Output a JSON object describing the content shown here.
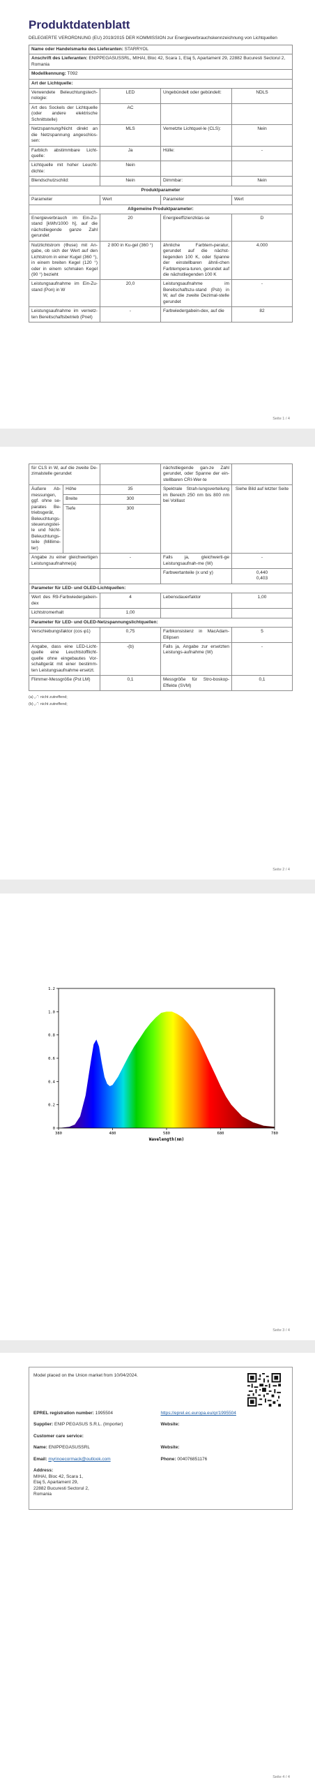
{
  "page1": {
    "title": "Produktdatenblatt",
    "regulation": "DELEGIERTE VERORDNUNG (EU) 2019/2015 DER KOMMISSION zur Energieverbrauchskennzeichnung von Lichtquellen",
    "supplier_name_label": "Name oder Handelsmarke des Lieferanten:",
    "supplier_name": "STARRYOL",
    "address_label": "Anschrift des Lieferanten:",
    "address": "ENIPPEGASUSSRL, MIHAI, Bloc 42, Scara 1, Etaj 5, Apartament 29, 22882 Bucuresti Sectorul 2, Romania",
    "model_label": "Modellkennung:",
    "model": "T092",
    "type_heading": "Art der Lichtquelle:",
    "type_rows": [
      {
        "p1": "Verwendete Beleuchtungstech-nologie:",
        "v1": "LED",
        "p2": "Ungebündelt oder gebündelt:",
        "v2": "NDLS"
      },
      {
        "p1": "Art des Sockels der Lichtquelle (oder andere elektrische Schnittstelle)",
        "v1": "AC",
        "p2": "",
        "v2": ""
      },
      {
        "p1": "Netzspannung/Nicht direkt an die Netzspannung angeschlos-sen:",
        "v1": "MLS",
        "p2": "Vernetzte Lichtquel-le (CLS):",
        "v2": "Nein"
      },
      {
        "p1": "Farblich abstimmbare Licht-quelle:",
        "v1": "Ja",
        "p2": "Hülle:",
        "v2": "-"
      },
      {
        "p1": "Lichtquelle mit hoher Leucht-dichte:",
        "v1": "Nein",
        "p2": "",
        "v2": ""
      },
      {
        "p1": "Blendschutzschild:",
        "v1": "Nein",
        "p2": "Dimmbar:",
        "v2": "Nein"
      }
    ],
    "product_params_heading": "Produktparameter",
    "col_param": "Parameter",
    "col_value": "Wert",
    "general_heading": "Allgemeine Produktparameter:",
    "param_rows": [
      {
        "p1": "Energieverbrauch im Ein-Zu-stand [kWh/1000 h], auf die nächstliegende ganze Zahl gerundet",
        "v1": "20",
        "p2": "Energieeffizienzklas-se",
        "v2": "D"
      },
      {
        "p1": "Nutzlichtstrom (Φuse) mit An-gabe, ob sich der Wert auf den Lichtstrom in einer Kugel (360 °), in einem breiten Kegel (120 °) oder in einem schmalen Kegel (90 °) bezieht",
        "v1": "2 800 in Ku-gel (360 °)",
        "p2": "ähnliche Farbtem-peratur, gerundet auf die nächst-liegenden 100 K, oder Spanne der einstellbaren ähnli-chen Farbtempera-turen, gerundet auf die nächstliegenden 100 K",
        "v2": "4.000"
      },
      {
        "p1": "Leistungsaufnahme im Ein-Zu-stand (Pon) in W",
        "v1": "20,0",
        "p2": "Leistungsaufnahme im Bereitschaftszu-stand (Psb) in W, auf die zweite Dezimal-stelle gerundet",
        "v2": "-"
      },
      {
        "p1": "Leistungsaufnahme im vernetz-ten Bereitschaftsbetrieb (Pnet)",
        "v1": "-",
        "p2": "Farbwiedergabein-dex, auf die",
        "v2": "82"
      }
    ],
    "footer": "Seite 1 / 4"
  },
  "page2": {
    "cont_rows": [
      {
        "p1": "für CLS in W, auf die zweite De-zimalstelle gerundet",
        "v1": "",
        "p2": "nächstliegende gan-ze Zahl gerundet, oder Spanne der ein-stellbaren CRI-Wer-te",
        "v2": ""
      }
    ],
    "dims_label": "Äußere Ab-messungen, ggf. ohne se-parates Be-triebsgerät, Beleuchtungs-steuerungstei-le und Nicht-Beleuchtungs-teile (Millime-ter)",
    "dims": [
      {
        "name": "Höhe",
        "value": "35"
      },
      {
        "name": "Breite",
        "value": "300"
      },
      {
        "name": "Tiefe",
        "value": "300"
      }
    ],
    "spectral_label": "Spektrale Strah-lungsverteilung im Bereich 250 nm bis 800 nm bei Volllast",
    "spectral_value": "Siehe Bild auf letzter Seite",
    "equiv_label": "Angabe zu einer gleichwertigen Leistungsaufnahme(a)",
    "equiv_value": "-",
    "equiv2_label": "Falls ja, gleichwerti-ge Leistungsaufnah-me (W)",
    "equiv2_value": "-",
    "chroma_label": "Farbwertanteile (x und y)",
    "chroma_x": "0,440",
    "chroma_y": "0,403",
    "led_heading": "Parameter für LED- und OLED-Lichtquellen:",
    "r9_label": "Wert des R9-Farbwiedergabein-dex",
    "r9_value": "4",
    "life_label": "Lebensdauerfaktor",
    "life_value": "1,00",
    "maint_label": "Lichtstromerhalt",
    "maint_value": "1,00",
    "mains_heading": "Parameter für LED- und OLED-Netzspannungslichtquellen:",
    "pf_label": "Verschiebungsfaktor (cos φ1)",
    "pf_value": "0,75",
    "macadam_label": "Farbkonsistenz in MacAdam-Ellipsen",
    "macadam_value": "5",
    "replace_label": "Angabe, dass eine LED-Licht-quelle eine Leuchtstofflicht-quelle ohne eingebautes Vor-schaltgerät mit einer bestimm-ten Leistungsaufnahme ersetzt.",
    "replace_value": "-(b)",
    "replace2_label": "Falls ja, Angabe zur ersetzten Leistungs-aufnahme (W)",
    "replace2_value": "-",
    "flicker_label": "Flimmer-Messgröße (Pst LM)",
    "flicker_value": "0,1",
    "svm_label": "Messgröße für Stro-boskop-Effekte (SVM)",
    "svm_value": "0,1",
    "note_a": "(a) „-“: nicht zutreffend;",
    "note_b": "(b) „-“: nicht zutreffend;",
    "footer": "Seite 2 / 4"
  },
  "page3": {
    "footer": "Seite 3 / 4"
  },
  "chart_data": {
    "type": "area",
    "xlabel": "Wavelength(nm)",
    "ylabel": "",
    "title": "",
    "xlim": [
      380,
      780
    ],
    "ylim": [
      0,
      1.2
    ],
    "x_ticks": [
      380,
      480,
      580,
      680,
      780
    ],
    "y_ticks": [
      0,
      0.2,
      0.4,
      0.6,
      0.8,
      1.0,
      1.2
    ],
    "x_tick_labels": [
      "380",
      "480",
      "580",
      "680",
      "780"
    ],
    "y_tick_labels": [
      "0",
      "0.2",
      "0.4",
      "0.6",
      "0.8",
      "1.0",
      "1.2"
    ],
    "series": [
      {
        "x": [
          380,
          400,
          410,
          420,
          430,
          440,
          445,
          450,
          455,
          460,
          465,
          470,
          475,
          480,
          490,
          500,
          510,
          520,
          530,
          540,
          550,
          560,
          570,
          580,
          590,
          600,
          610,
          620,
          630,
          640,
          650,
          660,
          670,
          680,
          690,
          700,
          720,
          740,
          760,
          780
        ],
        "y": [
          0.0,
          0.01,
          0.03,
          0.1,
          0.28,
          0.58,
          0.72,
          0.76,
          0.7,
          0.56,
          0.44,
          0.38,
          0.36,
          0.37,
          0.44,
          0.53,
          0.62,
          0.7,
          0.77,
          0.84,
          0.9,
          0.95,
          0.99,
          1.0,
          1.0,
          0.98,
          0.95,
          0.9,
          0.84,
          0.76,
          0.66,
          0.56,
          0.46,
          0.36,
          0.27,
          0.2,
          0.1,
          0.05,
          0.02,
          0.01
        ]
      }
    ]
  },
  "page4": {
    "placed": "Model placed on the Union market from 10/04/2024.",
    "eprel_label": "EPREL registration number:",
    "eprel_number": "1995504",
    "eprel_link": "https://eprel.ec.europa.eu/qr/1995504",
    "supplier_label": "Supplier:",
    "supplier_value": "ENIP PEGASUS S.R.L. (Importer)",
    "website_label": "Website:",
    "customer_label": "Customer care service:",
    "name_label": "Name:",
    "name_value": "ENIPPEGASUSSRL",
    "website2_label": "Website:",
    "email_label": "Email:",
    "email_value": "myrinoecormack@outlook.com",
    "phone_label": "Phone:",
    "phone_value": "004076851176",
    "addr_label": "Address:",
    "addr_lines": [
      "MIHAI, Bloc 42, Scara 1,",
      "Etaj 5, Apartament 29,",
      "22882 Bucuresti Sectorul 2,",
      "Romania"
    ],
    "footer": "Seite 4 / 4"
  }
}
